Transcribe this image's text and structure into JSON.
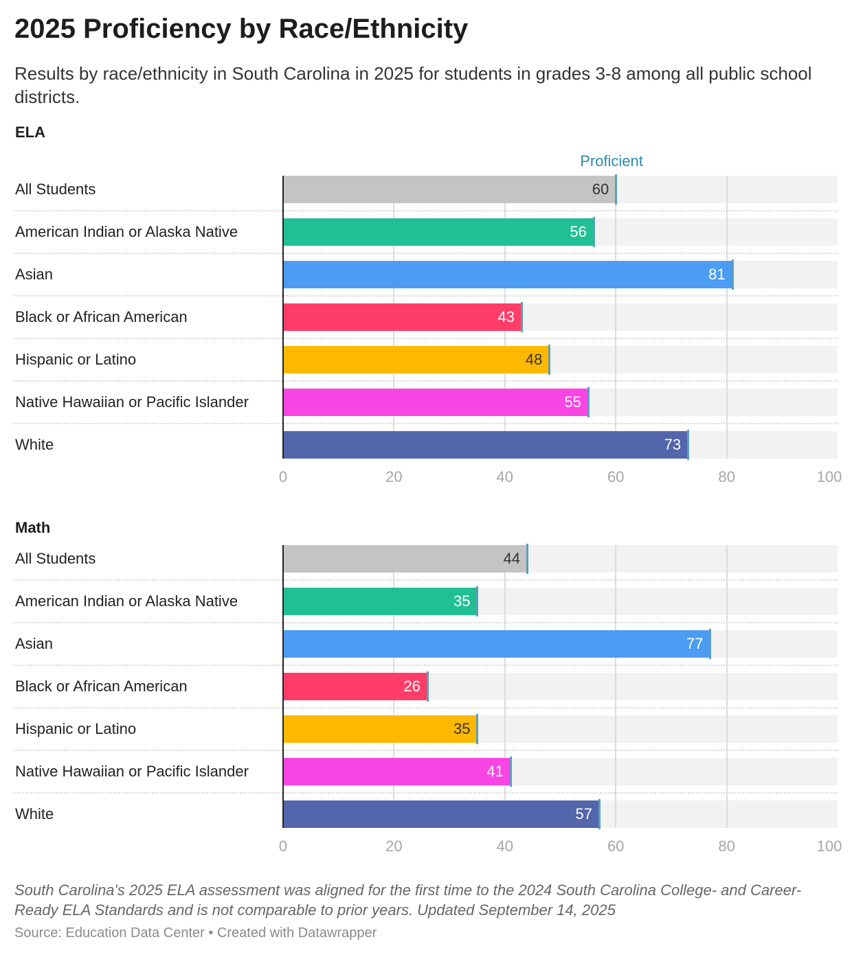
{
  "title": "2025 Proficiency by Race/Ethnicity",
  "subtitle": "Results by race/ethnicity in South Carolina in 2025 for students in grades 3-8 among all public school districts.",
  "note": "South Carolina's 2025 ELA assessment was aligned for the first time to the 2024 South Carolina College- and Career-Ready ELA Standards and is not comparable to prior years. Updated September 14, 2025",
  "source": "Source: Education Data Center • Created with Datawrapper",
  "chart_data": [
    {
      "type": "bar",
      "title": "ELA",
      "annotation": "Proficient",
      "xlim": [
        0,
        100
      ],
      "ticks": [
        "0",
        "20",
        "40",
        "60",
        "80",
        "100"
      ],
      "categories": [
        "All Students",
        "American Indian or Alaska Native",
        "Asian",
        "Black or African American",
        "Hispanic or Latino",
        "Native Hawaiian or Pacific Islander",
        "White"
      ],
      "values": [
        60,
        56,
        81,
        43,
        48,
        55,
        73
      ],
      "colors": [
        "#c4c4c4",
        "#20c094",
        "#4b9cf2",
        "#ff3d68",
        "#ffb800",
        "#f945e4",
        "#5365ab"
      ],
      "value_label_colors": [
        "#333333",
        "#ffffff",
        "#ffffff",
        "#ffffff",
        "#333333",
        "#ffffff",
        "#ffffff"
      ]
    },
    {
      "type": "bar",
      "title": "Math",
      "xlim": [
        0,
        100
      ],
      "ticks": [
        "0",
        "20",
        "40",
        "60",
        "80",
        "100"
      ],
      "categories": [
        "All Students",
        "American Indian or Alaska Native",
        "Asian",
        "Black or African American",
        "Hispanic or Latino",
        "Native Hawaiian or Pacific Islander",
        "White"
      ],
      "values": [
        44,
        35,
        77,
        26,
        35,
        41,
        57
      ],
      "colors": [
        "#c4c4c4",
        "#20c094",
        "#4b9cf2",
        "#ff3d68",
        "#ffb800",
        "#f945e4",
        "#5365ab"
      ],
      "value_label_colors": [
        "#333333",
        "#ffffff",
        "#ffffff",
        "#ffffff",
        "#333333",
        "#ffffff",
        "#ffffff"
      ]
    }
  ]
}
